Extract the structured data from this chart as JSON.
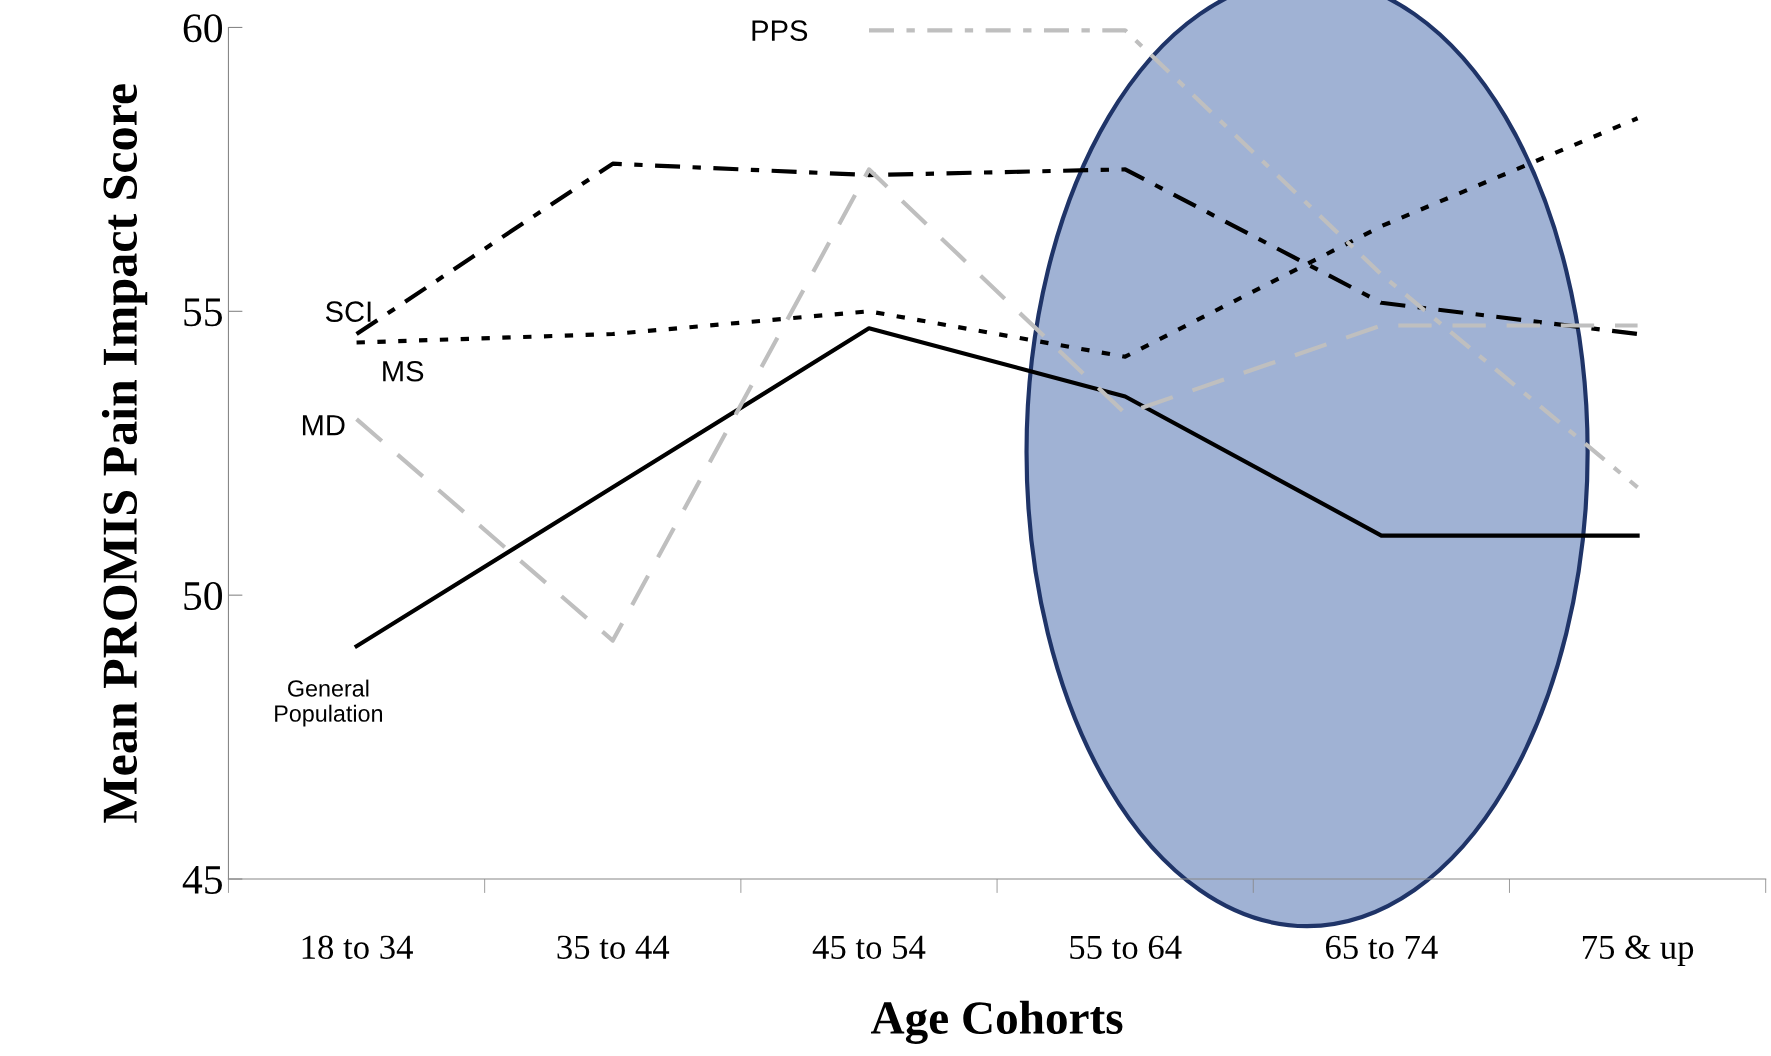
{
  "chart_data": {
    "type": "line",
    "xlabel": "Age Cohorts",
    "ylabel": "Mean PROMIS Pain Impact Score",
    "categories": [
      "18 to 34",
      "35 to 44",
      "45 to 54",
      "55 to 64",
      "65 to 74",
      "75 & up"
    ],
    "ylim": [
      45,
      60
    ],
    "yticks": [
      45,
      50,
      55,
      60
    ],
    "grid": false,
    "legend": false,
    "marker": "none",
    "series": [
      {
        "name": "General\nPopulation",
        "color": "#000000",
        "line_style": "solid",
        "values": [
          49.1,
          51.9,
          54.7,
          53.5,
          51.05,
          51.05
        ]
      },
      {
        "name": "SCI",
        "color": "#000000",
        "line_style": "dashdot",
        "values": [
          54.6,
          57.6,
          57.4,
          57.5,
          55.15,
          54.6
        ]
      },
      {
        "name": "MS",
        "color": "#000000",
        "line_style": "dotted",
        "values": [
          54.45,
          54.6,
          55.0,
          54.2,
          56.5,
          58.4
        ]
      },
      {
        "name": "MD",
        "color": "#bfbfbf",
        "line_style": "dashed",
        "values": [
          53.1,
          49.2,
          57.5,
          53.2,
          54.75,
          54.75
        ]
      },
      {
        "name": "PPS",
        "color": "#bfbfbf",
        "line_style": "dashdot",
        "values": [
          null,
          null,
          59.95,
          59.95,
          55.65,
          51.9
        ]
      }
    ]
  }
}
